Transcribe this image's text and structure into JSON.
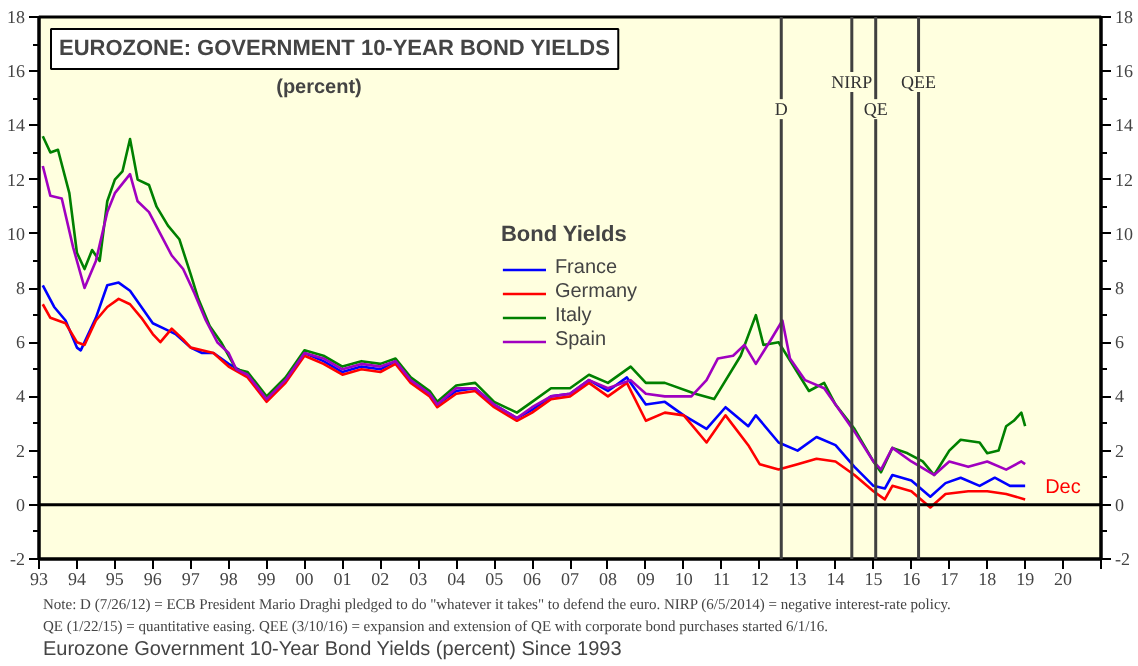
{
  "chart_data": {
    "type": "line",
    "title": "EUROZONE: GOVERNMENT 10-YEAR BOND YIELDS",
    "subtitle": "(percent)",
    "legend_title": "Bond Yields",
    "legend": "center",
    "grid": false,
    "xlim": [
      1993,
      2021
    ],
    "xticks": [
      {
        "value": 1993,
        "label": "93"
      },
      {
        "value": 1994,
        "label": "94"
      },
      {
        "value": 1995,
        "label": "95"
      },
      {
        "value": 1996,
        "label": "96"
      },
      {
        "value": 1997,
        "label": "97"
      },
      {
        "value": 1998,
        "label": "98"
      },
      {
        "value": 1999,
        "label": "99"
      },
      {
        "value": 2000,
        "label": "00"
      },
      {
        "value": 2001,
        "label": "01"
      },
      {
        "value": 2002,
        "label": "02"
      },
      {
        "value": 2003,
        "label": "03"
      },
      {
        "value": 2004,
        "label": "04"
      },
      {
        "value": 2005,
        "label": "05"
      },
      {
        "value": 2006,
        "label": "06"
      },
      {
        "value": 2007,
        "label": "07"
      },
      {
        "value": 2008,
        "label": "08"
      },
      {
        "value": 2009,
        "label": "09"
      },
      {
        "value": 2010,
        "label": "10"
      },
      {
        "value": 2011,
        "label": "11"
      },
      {
        "value": 2012,
        "label": "12"
      },
      {
        "value": 2013,
        "label": "13"
      },
      {
        "value": 2014,
        "label": "14"
      },
      {
        "value": 2015,
        "label": "15"
      },
      {
        "value": 2016,
        "label": "16"
      },
      {
        "value": 2017,
        "label": "17"
      },
      {
        "value": 2018,
        "label": "18"
      },
      {
        "value": 2019,
        "label": "19"
      },
      {
        "value": 2020,
        "label": "20"
      },
      {
        "value": 2021,
        "label": null
      }
    ],
    "ylim": [
      -2,
      18
    ],
    "yticks": [
      -2,
      {
        "value": -1,
        "label": null
      },
      0,
      {
        "value": 1,
        "label": null
      },
      2,
      {
        "value": 3,
        "label": null
      },
      4,
      {
        "value": 5,
        "label": null
      },
      6,
      {
        "value": 7,
        "label": null
      },
      8,
      {
        "value": 9,
        "label": null
      },
      10,
      {
        "value": 11,
        "label": null
      },
      12,
      {
        "value": 13,
        "label": null
      },
      14,
      {
        "value": 15,
        "label": null
      },
      16,
      {
        "value": 17,
        "label": null
      },
      18
    ],
    "y2lim": [
      -2,
      18
    ],
    "y2ticks": [
      -2,
      {
        "value": -1,
        "label": null
      },
      0,
      {
        "value": 1,
        "label": null
      },
      2,
      {
        "value": 3,
        "label": null
      },
      4,
      {
        "value": 5,
        "label": null
      },
      6,
      {
        "value": 7,
        "label": null
      },
      8,
      {
        "value": 9,
        "label": null
      },
      10,
      {
        "value": 11,
        "label": null
      },
      12,
      {
        "value": 13,
        "label": null
      },
      14,
      {
        "value": 15,
        "label": null
      },
      16,
      {
        "value": 17,
        "label": null
      },
      18
    ],
    "series": [
      {
        "name": "France",
        "color": "#0000ff",
        "x": [
          1993.1,
          1993.4,
          1993.7,
          1994.0,
          1994.1,
          1994.5,
          1994.8,
          1995.1,
          1995.4,
          1995.7,
          1996.0,
          1996.3,
          1996.6,
          1997.0,
          1997.3,
          1997.6,
          1998.0,
          1998.5,
          1999.0,
          1999.5,
          2000.0,
          2000.5,
          2001.0,
          2001.5,
          2002.0,
          2002.4,
          2002.8,
          2003.3,
          2003.5,
          2004.0,
          2004.5,
          2005.0,
          2005.6,
          2006.0,
          2006.5,
          2007.0,
          2007.5,
          2008.0,
          2008.5,
          2009.0,
          2009.5,
          2010.0,
          2010.6,
          2011.1,
          2011.7,
          2011.9,
          2012.5,
          2013.0,
          2013.5,
          2014.0,
          2014.5,
          2015.0,
          2015.3,
          2015.5,
          2016.0,
          2016.5,
          2016.9,
          2017.3,
          2017.8,
          2018.2,
          2018.6,
          2019.0
        ],
        "values": [
          8.1,
          7.3,
          6.8,
          5.8,
          5.7,
          6.9,
          8.1,
          8.2,
          7.9,
          7.3,
          6.7,
          6.5,
          6.3,
          5.8,
          5.6,
          5.6,
          5.2,
          4.8,
          3.9,
          4.6,
          5.6,
          5.3,
          4.9,
          5.1,
          5.0,
          5.3,
          4.6,
          4.1,
          3.7,
          4.2,
          4.3,
          3.7,
          3.2,
          3.5,
          4.0,
          4.1,
          4.6,
          4.2,
          4.7,
          3.7,
          3.8,
          3.3,
          2.8,
          3.6,
          2.9,
          3.3,
          2.3,
          2.0,
          2.5,
          2.2,
          1.4,
          0.7,
          0.6,
          1.1,
          0.9,
          0.3,
          0.8,
          1.0,
          0.7,
          1.0,
          0.7,
          0.7
        ]
      },
      {
        "name": "Germany",
        "color": "#ff0000",
        "x": [
          1993.1,
          1993.3,
          1993.7,
          1994.0,
          1994.2,
          1994.5,
          1994.8,
          1995.1,
          1995.4,
          1995.7,
          1996.0,
          1996.2,
          1996.5,
          1996.8,
          1997.0,
          1997.3,
          1997.6,
          1998.0,
          1998.5,
          1999.0,
          1999.5,
          2000.0,
          2000.5,
          2001.0,
          2001.5,
          2002.0,
          2002.4,
          2002.8,
          2003.3,
          2003.5,
          2004.0,
          2004.5,
          2005.0,
          2005.6,
          2006.0,
          2006.5,
          2007.0,
          2007.5,
          2008.0,
          2008.5,
          2009.0,
          2009.5,
          2010.0,
          2010.6,
          2011.1,
          2011.7,
          2012.0,
          2012.5,
          2013.0,
          2013.5,
          2014.0,
          2014.5,
          2015.0,
          2015.3,
          2015.5,
          2016.0,
          2016.5,
          2016.9,
          2017.5,
          2018.0,
          2018.5,
          2019.0
        ],
        "values": [
          7.4,
          6.9,
          6.7,
          6.0,
          5.9,
          6.8,
          7.3,
          7.6,
          7.4,
          6.9,
          6.3,
          6.0,
          6.5,
          6.1,
          5.8,
          5.7,
          5.6,
          5.1,
          4.7,
          3.8,
          4.5,
          5.5,
          5.2,
          4.8,
          5.0,
          4.9,
          5.2,
          4.5,
          4.0,
          3.6,
          4.1,
          4.2,
          3.6,
          3.1,
          3.4,
          3.9,
          4.0,
          4.5,
          4.0,
          4.5,
          3.1,
          3.4,
          3.3,
          2.3,
          3.3,
          2.2,
          1.5,
          1.3,
          1.5,
          1.7,
          1.6,
          1.1,
          0.5,
          0.2,
          0.7,
          0.5,
          -0.1,
          0.4,
          0.5,
          0.5,
          0.4,
          0.2
        ]
      },
      {
        "name": "Italy",
        "color": "#008000",
        "x": [
          1993.1,
          1993.3,
          1993.5,
          1993.8,
          1994.0,
          1994.2,
          1994.4,
          1994.6,
          1994.8,
          1995.0,
          1995.2,
          1995.4,
          1995.6,
          1995.9,
          1996.1,
          1996.4,
          1996.7,
          1997.0,
          1997.2,
          1997.5,
          1997.8,
          1998.2,
          1998.5,
          1999.0,
          1999.5,
          2000.0,
          2000.5,
          2001.0,
          2001.5,
          2002.0,
          2002.4,
          2002.8,
          2003.3,
          2003.5,
          2004.0,
          2004.5,
          2005.0,
          2005.6,
          2006.0,
          2006.5,
          2007.0,
          2007.5,
          2008.0,
          2008.6,
          2009.0,
          2009.5,
          2010.3,
          2010.8,
          2011.5,
          2011.9,
          2012.1,
          2012.5,
          2012.9,
          2013.3,
          2013.7,
          2014.0,
          2014.5,
          2015.0,
          2015.2,
          2015.5,
          2015.9,
          2016.3,
          2016.6,
          2017.0,
          2017.3,
          2017.8,
          2018.0,
          2018.3,
          2018.5,
          2018.7,
          2018.9,
          2019.0
        ],
        "values": [
          13.6,
          13.0,
          13.1,
          11.5,
          9.3,
          8.7,
          9.4,
          9.0,
          11.2,
          12.0,
          12.3,
          13.5,
          12.0,
          11.8,
          11.0,
          10.3,
          9.8,
          8.5,
          7.6,
          6.6,
          6.0,
          5.0,
          4.9,
          4.0,
          4.7,
          5.7,
          5.5,
          5.1,
          5.3,
          5.2,
          5.4,
          4.7,
          4.2,
          3.8,
          4.4,
          4.5,
          3.8,
          3.4,
          3.8,
          4.3,
          4.3,
          4.8,
          4.5,
          5.1,
          4.5,
          4.5,
          4.1,
          3.9,
          5.5,
          7.0,
          5.9,
          6.0,
          5.1,
          4.2,
          4.5,
          3.7,
          2.8,
          1.6,
          1.2,
          2.1,
          1.9,
          1.6,
          1.1,
          2.0,
          2.4,
          2.3,
          1.9,
          2.0,
          2.9,
          3.1,
          3.4,
          2.9
        ]
      },
      {
        "name": "Spain",
        "color": "#a000c0",
        "x": [
          1993.1,
          1993.3,
          1993.6,
          1993.9,
          1994.2,
          1994.5,
          1994.8,
          1995.0,
          1995.4,
          1995.6,
          1995.9,
          1996.2,
          1996.5,
          1996.8,
          1997.1,
          1997.4,
          1997.7,
          1998.0,
          1998.2,
          1998.5,
          1999.0,
          1999.5,
          2000.0,
          2000.5,
          2001.0,
          2001.5,
          2002.0,
          2002.4,
          2002.8,
          2003.3,
          2003.5,
          2004.0,
          2004.5,
          2005.0,
          2005.6,
          2006.0,
          2006.5,
          2007.0,
          2007.5,
          2008.0,
          2008.6,
          2009.0,
          2009.5,
          2010.2,
          2010.6,
          2010.9,
          2011.3,
          2011.6,
          2011.9,
          2012.3,
          2012.6,
          2012.8,
          2013.2,
          2013.7,
          2014.0,
          2014.5,
          2015.0,
          2015.2,
          2015.5,
          2016.0,
          2016.6,
          2017.0,
          2017.5,
          2018.0,
          2018.5,
          2018.9,
          2019.0
        ],
        "values": [
          12.5,
          11.4,
          11.3,
          9.5,
          8.0,
          9.0,
          10.8,
          11.5,
          12.2,
          11.2,
          10.8,
          10.0,
          9.2,
          8.7,
          7.8,
          6.8,
          6.0,
          5.6,
          5.0,
          4.8,
          3.9,
          4.6,
          5.6,
          5.4,
          5.0,
          5.2,
          5.1,
          5.3,
          4.6,
          4.1,
          3.7,
          4.3,
          4.3,
          3.7,
          3.2,
          3.6,
          4.0,
          4.1,
          4.6,
          4.3,
          4.6,
          4.1,
          4.0,
          4.0,
          4.6,
          5.4,
          5.5,
          5.9,
          5.2,
          6.1,
          6.8,
          5.4,
          4.6,
          4.3,
          3.7,
          2.7,
          1.6,
          1.3,
          2.1,
          1.6,
          1.1,
          1.6,
          1.4,
          1.6,
          1.3,
          1.6,
          1.5
        ]
      }
    ],
    "ref_lines": [
      {
        "axis": "y",
        "value": 0,
        "label": null,
        "color": "#000000"
      },
      {
        "axis": "x",
        "value": 2012.57,
        "label": "D",
        "color": "#404040"
      },
      {
        "axis": "x",
        "value": 2014.43,
        "label": "NIRP",
        "color": "#404040"
      },
      {
        "axis": "x",
        "value": 2015.06,
        "label": "QE",
        "color": "#404040"
      },
      {
        "axis": "x",
        "value": 2016.19,
        "label": "QEE",
        "color": "#404040"
      }
    ],
    "annotations": [
      {
        "text": "Dec",
        "x": 2019.0,
        "y": 0.2
      },
      "Note: D (7/26/12) = ECB President Mario Draghi pledged to do \"whatever it takes\" to defend the euro. NIRP (6/5/2014) = negative interest-rate policy.",
      "QE (1/22/15) = quantitative easing. QEE (3/10/16) = expansion and extension of QE with corporate bond purchases started 6/1/16.",
      "Eurozone Government 10-Year Bond Yields (percent) Since 1993"
    ]
  }
}
